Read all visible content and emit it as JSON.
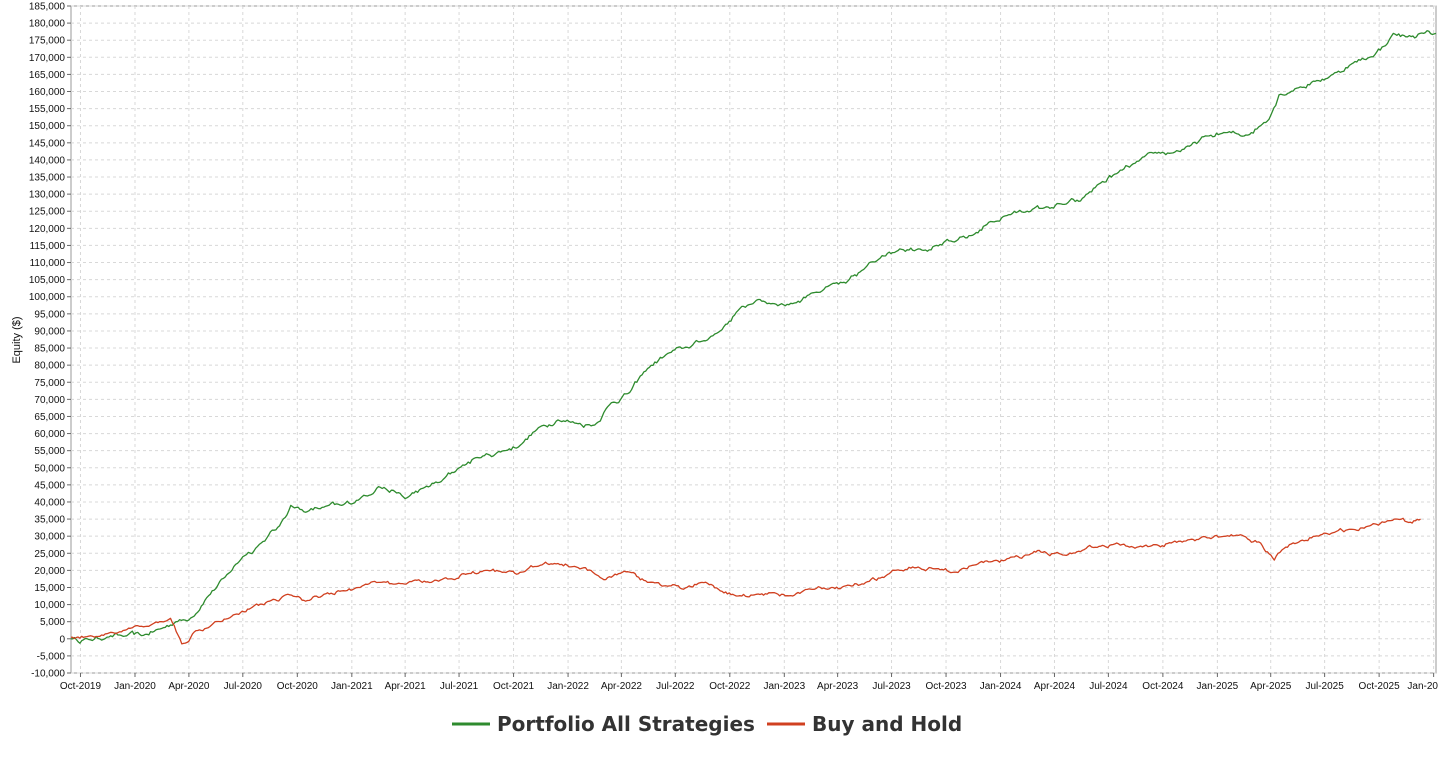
{
  "chart_data": {
    "type": "line",
    "title": "",
    "xlabel": "",
    "ylabel": "Equity ($)",
    "ylim": [
      -10000,
      185000
    ],
    "xlim": [
      "2019-09-15",
      "2026-01-05"
    ],
    "grid": true,
    "legend_position": "bottom-center",
    "y_ticks": [
      -10000,
      -5000,
      0,
      5000,
      10000,
      15000,
      20000,
      25000,
      30000,
      35000,
      40000,
      45000,
      50000,
      55000,
      60000,
      65000,
      70000,
      75000,
      80000,
      85000,
      90000,
      95000,
      100000,
      105000,
      110000,
      115000,
      120000,
      125000,
      130000,
      135000,
      140000,
      145000,
      150000,
      155000,
      160000,
      165000,
      170000,
      175000,
      180000,
      185000
    ],
    "y_tick_labels": [
      "-10,000",
      "-5,000",
      "0",
      "5,000",
      "10,000",
      "15,000",
      "20,000",
      "25,000",
      "30,000",
      "35,000",
      "40,000",
      "45,000",
      "50,000",
      "55,000",
      "60,000",
      "65,000",
      "70,000",
      "75,000",
      "80,000",
      "85,000",
      "90,000",
      "95,000",
      "100,000",
      "105,000",
      "110,000",
      "115,000",
      "120,000",
      "125,000",
      "130,000",
      "135,000",
      "140,000",
      "145,000",
      "150,000",
      "155,000",
      "160,000",
      "165,000",
      "170,000",
      "175,000",
      "180,000",
      "185,000"
    ],
    "x_ticks": [
      "2019-10-01",
      "2020-01-01",
      "2020-04-01",
      "2020-07-01",
      "2020-10-01",
      "2021-01-01",
      "2021-04-01",
      "2021-07-01",
      "2021-10-01",
      "2022-01-01",
      "2022-04-01",
      "2022-07-01",
      "2022-10-01",
      "2023-01-01",
      "2023-04-01",
      "2023-07-01",
      "2023-10-01",
      "2024-01-01",
      "2024-04-01",
      "2024-07-01",
      "2024-10-01",
      "2025-01-01",
      "2025-04-01",
      "2025-07-01",
      "2025-10-01",
      "2026-01-01"
    ],
    "x_tick_labels": [
      "Oct-2019",
      "Jan-2020",
      "Apr-2020",
      "Jul-2020",
      "Oct-2020",
      "Jan-2021",
      "Apr-2021",
      "Jul-2021",
      "Oct-2021",
      "Jan-2022",
      "Apr-2022",
      "Jul-2022",
      "Oct-2022",
      "Jan-2023",
      "Apr-2023",
      "Jul-2023",
      "Oct-2023",
      "Jan-2024",
      "Apr-2024",
      "Jul-2024",
      "Oct-2024",
      "Jan-2025",
      "Apr-2025",
      "Jul-2025",
      "Oct-2025",
      "Jan-20"
    ],
    "series": [
      {
        "name": "Portfolio All Strategies",
        "color": "#2e8b2e",
        "points": [
          [
            "2019-09-15",
            0
          ],
          [
            "2019-10-15",
            -200
          ],
          [
            "2019-11-15",
            500
          ],
          [
            "2019-12-15",
            800
          ],
          [
            "2020-01-15",
            1000
          ],
          [
            "2020-02-15",
            3000
          ],
          [
            "2020-03-10",
            5000
          ],
          [
            "2020-04-01",
            5500
          ],
          [
            "2020-05-01",
            12000
          ],
          [
            "2020-06-01",
            18000
          ],
          [
            "2020-07-01",
            24000
          ],
          [
            "2020-08-01",
            28000
          ],
          [
            "2020-09-01",
            33000
          ],
          [
            "2020-09-20",
            39000
          ],
          [
            "2020-10-15",
            37000
          ],
          [
            "2020-11-15",
            38500
          ],
          [
            "2020-12-15",
            39000
          ],
          [
            "2021-01-15",
            41000
          ],
          [
            "2021-02-15",
            44500
          ],
          [
            "2021-03-15",
            43000
          ],
          [
            "2021-04-01",
            41000
          ],
          [
            "2021-05-01",
            44000
          ],
          [
            "2021-06-01",
            46000
          ],
          [
            "2021-07-01",
            50000
          ],
          [
            "2021-08-01",
            53000
          ],
          [
            "2021-09-15",
            55000
          ],
          [
            "2021-10-15",
            57000
          ],
          [
            "2021-11-15",
            62000
          ],
          [
            "2021-12-15",
            64000
          ],
          [
            "2022-01-15",
            63000
          ],
          [
            "2022-02-15",
            62500
          ],
          [
            "2022-03-15",
            69000
          ],
          [
            "2022-04-15",
            72000
          ],
          [
            "2022-05-15",
            79000
          ],
          [
            "2022-06-15",
            83000
          ],
          [
            "2022-07-15",
            85000
          ],
          [
            "2022-08-15",
            87000
          ],
          [
            "2022-09-15",
            90000
          ],
          [
            "2022-10-15",
            96000
          ],
          [
            "2022-11-15",
            99000
          ],
          [
            "2022-12-15",
            98000
          ],
          [
            "2023-01-15",
            98000
          ],
          [
            "2023-02-15",
            101000
          ],
          [
            "2023-03-15",
            103000
          ],
          [
            "2023-04-15",
            104000
          ],
          [
            "2023-05-15",
            108000
          ],
          [
            "2023-06-15",
            112000
          ],
          [
            "2023-07-15",
            114000
          ],
          [
            "2023-08-15",
            114000
          ],
          [
            "2023-09-15",
            115000
          ],
          [
            "2023-10-15",
            116000
          ],
          [
            "2023-11-15",
            118000
          ],
          [
            "2023-12-15",
            122000
          ],
          [
            "2024-01-15",
            124000
          ],
          [
            "2024-02-15",
            125000
          ],
          [
            "2024-03-15",
            126000
          ],
          [
            "2024-04-15",
            127000
          ],
          [
            "2024-05-15",
            128000
          ],
          [
            "2024-06-15",
            133000
          ],
          [
            "2024-07-15",
            136000
          ],
          [
            "2024-08-15",
            139000
          ],
          [
            "2024-09-15",
            142000
          ],
          [
            "2024-10-15",
            142000
          ],
          [
            "2024-11-15",
            144000
          ],
          [
            "2024-12-15",
            147000
          ],
          [
            "2025-01-15",
            148000
          ],
          [
            "2025-02-15",
            147000
          ],
          [
            "2025-03-15",
            150000
          ],
          [
            "2025-04-01",
            153000
          ],
          [
            "2025-04-15",
            159000
          ],
          [
            "2025-05-15",
            161000
          ],
          [
            "2025-06-15",
            163000
          ],
          [
            "2025-07-15",
            165000
          ],
          [
            "2025-08-15",
            168000
          ],
          [
            "2025-09-15",
            170000
          ],
          [
            "2025-10-15",
            174000
          ],
          [
            "2025-10-25",
            177000
          ],
          [
            "2025-11-15",
            176000
          ],
          [
            "2025-12-15",
            177000
          ],
          [
            "2026-01-05",
            177000
          ]
        ]
      },
      {
        "name": "Buy and Hold",
        "color": "#d04020",
        "points": [
          [
            "2019-09-15",
            500
          ],
          [
            "2019-10-15",
            800
          ],
          [
            "2019-11-15",
            1500
          ],
          [
            "2019-12-15",
            2500
          ],
          [
            "2020-01-15",
            3500
          ],
          [
            "2020-02-15",
            5000
          ],
          [
            "2020-03-01",
            6000
          ],
          [
            "2020-03-20",
            -1500
          ],
          [
            "2020-04-10",
            2000
          ],
          [
            "2020-05-15",
            5000
          ],
          [
            "2020-06-15",
            7000
          ],
          [
            "2020-07-15",
            9000
          ],
          [
            "2020-08-15",
            11000
          ],
          [
            "2020-09-15",
            13000
          ],
          [
            "2020-10-15",
            11000
          ],
          [
            "2020-11-15",
            13000
          ],
          [
            "2020-12-15",
            14000
          ],
          [
            "2021-01-15",
            15000
          ],
          [
            "2021-02-15",
            16500
          ],
          [
            "2021-03-15",
            16000
          ],
          [
            "2021-04-15",
            17000
          ],
          [
            "2021-05-15",
            16500
          ],
          [
            "2021-06-15",
            17500
          ],
          [
            "2021-07-15",
            19000
          ],
          [
            "2021-08-15",
            20000
          ],
          [
            "2021-09-15",
            19500
          ],
          [
            "2021-10-15",
            19500
          ],
          [
            "2021-11-15",
            21500
          ],
          [
            "2021-12-15",
            22000
          ],
          [
            "2022-01-15",
            21000
          ],
          [
            "2022-02-15",
            19000
          ],
          [
            "2022-03-15",
            18000
          ],
          [
            "2022-04-15",
            19500
          ],
          [
            "2022-05-15",
            16500
          ],
          [
            "2022-06-15",
            15500
          ],
          [
            "2022-07-15",
            14500
          ],
          [
            "2022-08-15",
            16500
          ],
          [
            "2022-09-15",
            14000
          ],
          [
            "2022-10-15",
            12500
          ],
          [
            "2022-11-15",
            13000
          ],
          [
            "2022-12-15",
            13500
          ],
          [
            "2023-01-15",
            12500
          ],
          [
            "2023-02-15",
            14500
          ],
          [
            "2023-03-15",
            14500
          ],
          [
            "2023-04-15",
            15500
          ],
          [
            "2023-05-15",
            16000
          ],
          [
            "2023-06-15",
            18000
          ],
          [
            "2023-07-15",
            20000
          ],
          [
            "2023-08-15",
            21000
          ],
          [
            "2023-09-15",
            20500
          ],
          [
            "2023-10-15",
            19500
          ],
          [
            "2023-11-15",
            21500
          ],
          [
            "2023-12-15",
            22500
          ],
          [
            "2024-01-15",
            23500
          ],
          [
            "2024-02-15",
            24500
          ],
          [
            "2024-03-15",
            25500
          ],
          [
            "2024-04-15",
            24500
          ],
          [
            "2024-05-15",
            25500
          ],
          [
            "2024-06-15",
            27000
          ],
          [
            "2024-07-15",
            28000
          ],
          [
            "2024-08-15",
            26500
          ],
          [
            "2024-09-15",
            27500
          ],
          [
            "2024-10-15",
            28000
          ],
          [
            "2024-11-15",
            29000
          ],
          [
            "2024-12-15",
            29500
          ],
          [
            "2025-01-15",
            30000
          ],
          [
            "2025-02-15",
            30000
          ],
          [
            "2025-03-15",
            28000
          ],
          [
            "2025-04-07",
            23000
          ],
          [
            "2025-04-20",
            26000
          ],
          [
            "2025-05-15",
            28000
          ],
          [
            "2025-06-15",
            30000
          ],
          [
            "2025-07-15",
            31000
          ],
          [
            "2025-08-15",
            32000
          ],
          [
            "2025-09-15",
            33000
          ],
          [
            "2025-10-15",
            34500
          ],
          [
            "2025-11-01",
            35000
          ],
          [
            "2025-11-20",
            34000
          ],
          [
            "2025-12-10",
            35000
          ]
        ]
      }
    ]
  }
}
